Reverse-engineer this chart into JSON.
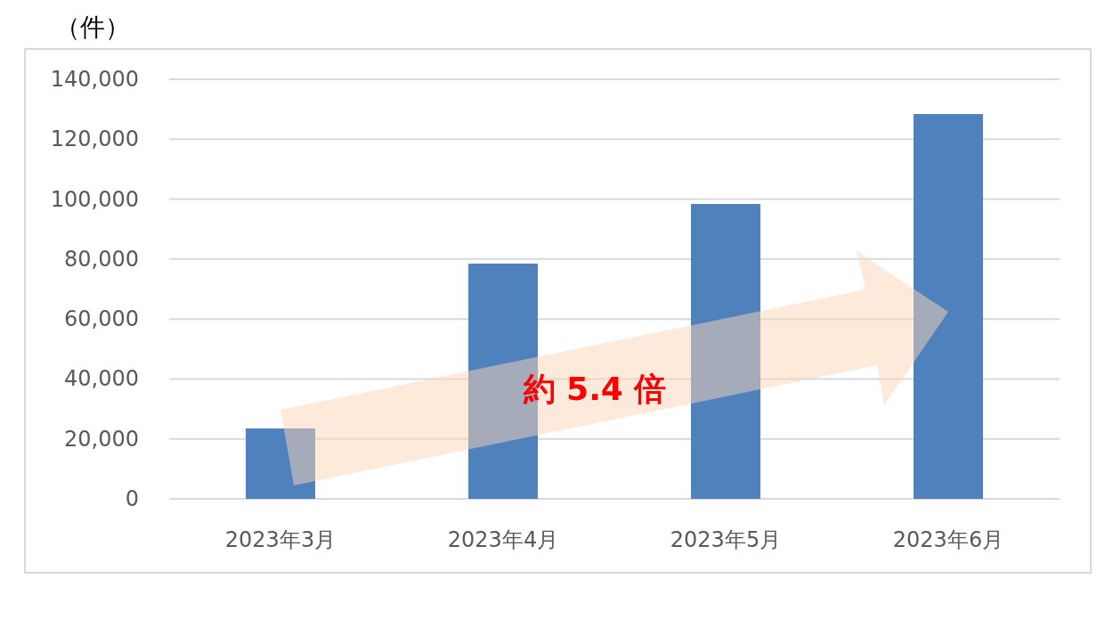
{
  "chart_data": {
    "type": "bar",
    "ylabel": "（件）",
    "categories": [
      "2023年3月",
      "2023年4月",
      "2023年5月",
      "2023年6月"
    ],
    "values": [
      23500,
      78500,
      98400,
      128400
    ],
    "color": "#4f81bd",
    "ylim": [
      0,
      140000
    ],
    "yticks": [
      0,
      {
        "value": 20000,
        "label": "20,000"
      },
      {
        "value": 40000,
        "label": "40,000"
      },
      {
        "value": 60000,
        "label": "60,000"
      },
      {
        "value": 80000,
        "label": "80,000"
      },
      {
        "value": 100000,
        "label": "100,000"
      },
      {
        "value": 120000,
        "label": "120,000"
      },
      {
        "value": 140000,
        "label": "140,000"
      }
    ],
    "grid": "y",
    "annotations": [
      "約 5.4 倍"
    ]
  }
}
